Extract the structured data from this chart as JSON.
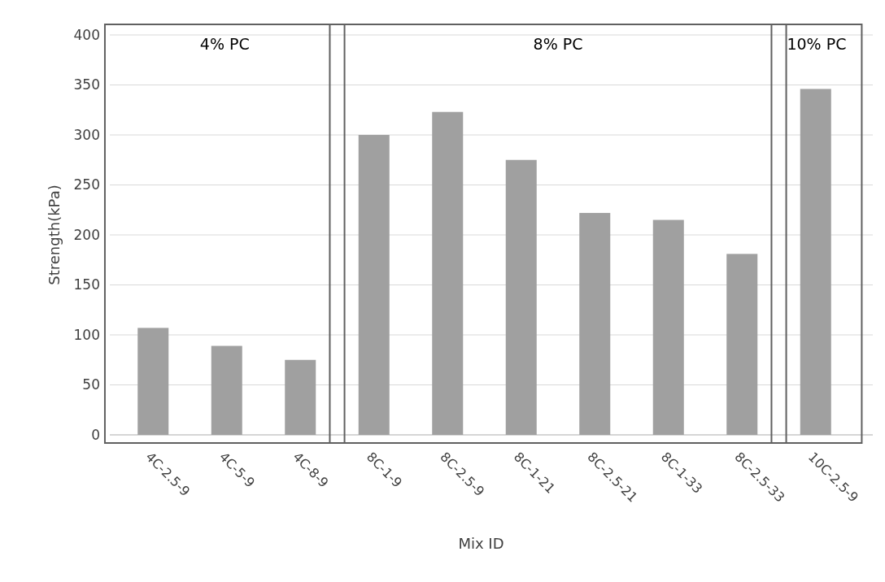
{
  "chart_data": {
    "type": "bar",
    "xlabel": "Mix ID",
    "ylabel": "Strength(kPa)",
    "categories": [
      "4C-2.5-9",
      "4C-5-9",
      "4C-8-9",
      "8C-1-9",
      "8C-2.5-9",
      "8C-1-21",
      "8C-2.5-21",
      "8C-1-33",
      "8C-2.5-33",
      "10C-2.5-9"
    ],
    "values": [
      107,
      89,
      75,
      300,
      323,
      275,
      222,
      215,
      181,
      346
    ],
    "color": "#a0a0a0",
    "ylim": [
      0,
      400
    ],
    "yticks": [
      0,
      50,
      100,
      150,
      200,
      250,
      300,
      350,
      400
    ],
    "grid": "y",
    "annotations": [
      "4% PC",
      "8% PC",
      "10% PC"
    ]
  }
}
